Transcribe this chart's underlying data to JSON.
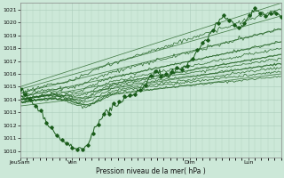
{
  "title": "",
  "xlabel": "Pression niveau de la mer( hPa )",
  "ylabel": "",
  "ylim": [
    1009.5,
    1021.5
  ],
  "yticks": [
    1010,
    1011,
    1012,
    1013,
    1014,
    1015,
    1016,
    1017,
    1018,
    1019,
    1020,
    1021
  ],
  "bg_color": "#cce8d8",
  "grid_color": "#aaccbb",
  "line_color": "#1a5c1a",
  "x_tick_labels": [
    "JeuSam",
    "Ven",
    "Dim",
    "Lun"
  ],
  "x_tick_positions": [
    0,
    40,
    130,
    175
  ],
  "xlim": [
    0,
    200
  ],
  "markersize": 1.8,
  "linewidth": 0.7
}
